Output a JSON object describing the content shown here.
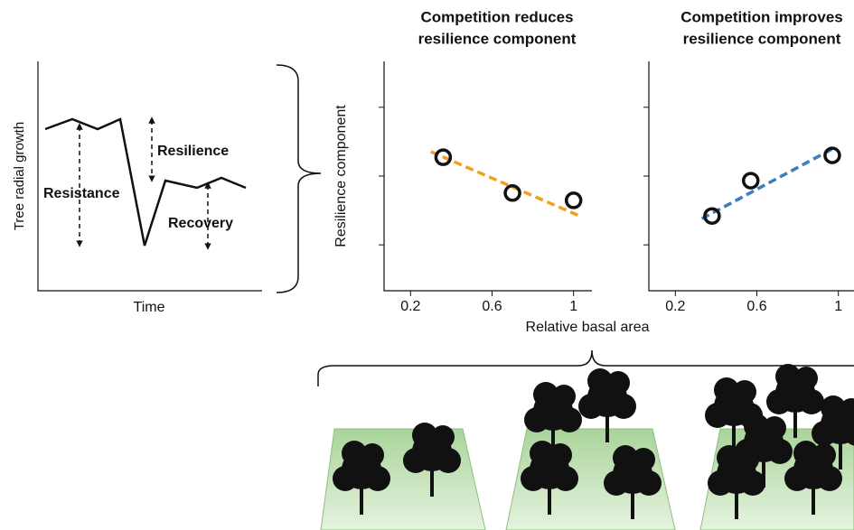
{
  "schematic": {
    "ylabel": "Tree radial growth",
    "xlabel": "Time",
    "labels": [
      "Resistance",
      "Resilience",
      "Recovery"
    ]
  },
  "chart_data": [
    {
      "type": "scatter",
      "title": [
        "Competition reduces",
        "resilience component"
      ],
      "ylabel": "Resilience component",
      "xlabel": "Relative basal area",
      "x": [
        0.36,
        0.7,
        1.0
      ],
      "values": [
        2.91,
        2.13,
        1.97
      ],
      "fit": {
        "x": [
          0.3,
          1.04
        ],
        "values": [
          3.03,
          1.61
        ],
        "color": "#f0a020"
      },
      "xlim": [
        0.07,
        1.09
      ],
      "xticks": [
        0.2,
        0.6,
        1.0
      ],
      "ylim": [
        0,
        5
      ],
      "yticks": [
        1,
        2.5,
        4
      ]
    },
    {
      "type": "scatter",
      "title": [
        "Competition improves",
        "resilience component"
      ],
      "x": [
        0.38,
        0.57,
        0.97
      ],
      "values": [
        1.63,
        2.4,
        2.95
      ],
      "fit": {
        "x": [
          0.33,
          0.97
        ],
        "values": [
          1.57,
          3.09
        ],
        "color": "#3a7ebf"
      },
      "xlim": [
        0.07,
        1.09
      ],
      "xticks": [
        0.2,
        0.6,
        1.0
      ],
      "ylim": [
        0,
        5
      ],
      "yticks": [
        1,
        2.5,
        4
      ]
    }
  ]
}
